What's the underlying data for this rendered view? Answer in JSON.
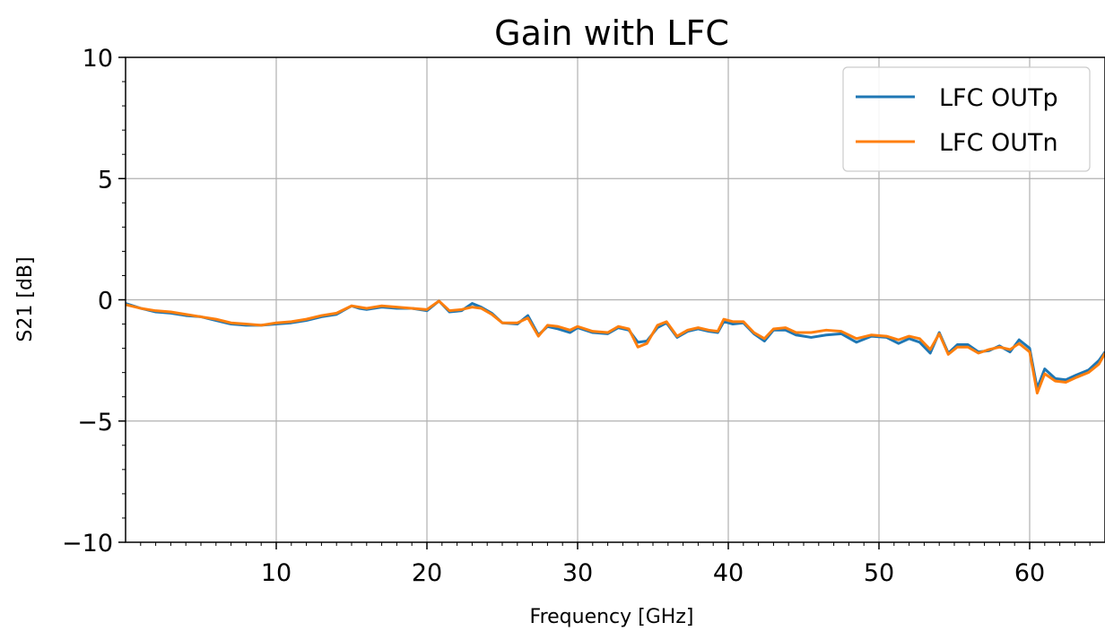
{
  "chart_data": {
    "type": "line",
    "title": "Gain with LFC",
    "xlabel": "Frequency [GHz]",
    "ylabel": "S21 [dB]",
    "xlim": [
      0,
      65
    ],
    "ylim": [
      -10,
      10
    ],
    "xticks": [
      10,
      20,
      30,
      40,
      50,
      60
    ],
    "yticks": [
      -10,
      -5,
      0,
      5,
      10
    ],
    "ytick_labels": [
      "−10",
      "−5",
      "0",
      "5",
      "10"
    ],
    "grid": true,
    "legend_position": "top-right",
    "series": [
      {
        "name": "LFC OUTp",
        "color": "#1f77b4",
        "x": [
          0,
          1,
          2,
          3,
          4,
          5,
          6,
          7,
          8,
          9,
          10,
          11,
          12,
          13,
          14,
          15,
          15.5,
          16,
          17,
          18,
          19,
          20,
          20.8,
          21.5,
          22.3,
          23,
          23.6,
          24.3,
          25,
          26,
          26.7,
          27.4,
          28,
          28.7,
          29.5,
          30,
          31,
          32,
          32.7,
          33.4,
          34,
          34.6,
          35.3,
          35.9,
          36.6,
          37.3,
          38,
          38.7,
          39.3,
          39.7,
          40.3,
          41,
          41.7,
          42.4,
          43,
          43.8,
          44.5,
          45.5,
          46.5,
          47.5,
          48.5,
          49.5,
          50.5,
          51.3,
          52,
          52.7,
          53.4,
          54,
          54.6,
          55.2,
          55.9,
          56.6,
          57.3,
          58,
          58.7,
          59.3,
          60,
          60.5,
          61,
          61.7,
          62.4,
          63.1,
          63.9,
          64.6,
          65
        ],
        "values": [
          -0.15,
          -0.35,
          -0.5,
          -0.55,
          -0.65,
          -0.7,
          -0.85,
          -1.0,
          -1.05,
          -1.05,
          -1.0,
          -0.95,
          -0.85,
          -0.7,
          -0.6,
          -0.25,
          -0.35,
          -0.4,
          -0.3,
          -0.35,
          -0.35,
          -0.45,
          -0.05,
          -0.5,
          -0.45,
          -0.15,
          -0.3,
          -0.55,
          -0.95,
          -1.0,
          -0.65,
          -1.45,
          -1.1,
          -1.2,
          -1.35,
          -1.15,
          -1.35,
          -1.4,
          -1.15,
          -1.25,
          -1.75,
          -1.7,
          -1.15,
          -0.95,
          -1.55,
          -1.3,
          -1.2,
          -1.3,
          -1.35,
          -0.9,
          -1.0,
          -0.95,
          -1.4,
          -1.7,
          -1.25,
          -1.25,
          -1.45,
          -1.55,
          -1.45,
          -1.4,
          -1.75,
          -1.5,
          -1.55,
          -1.8,
          -1.6,
          -1.75,
          -2.2,
          -1.35,
          -2.2,
          -1.85,
          -1.85,
          -2.15,
          -2.1,
          -1.9,
          -2.15,
          -1.65,
          -2.0,
          -3.65,
          -2.85,
          -3.25,
          -3.3,
          -3.1,
          -2.9,
          -2.5,
          -2.15
        ]
      },
      {
        "name": "LFC OUTn",
        "color": "#ff7f0e",
        "x": [
          0,
          1,
          2,
          3,
          4,
          5,
          6,
          7,
          8,
          9,
          10,
          11,
          12,
          13,
          14,
          15,
          15.5,
          16,
          17,
          18,
          19,
          20,
          20.8,
          21.5,
          22.3,
          23,
          23.6,
          24.3,
          25,
          26,
          26.7,
          27.4,
          28,
          28.7,
          29.5,
          30,
          31,
          32,
          32.7,
          33.4,
          34,
          34.6,
          35.3,
          35.9,
          36.6,
          37.3,
          38,
          38.7,
          39.3,
          39.7,
          40.3,
          41,
          41.7,
          42.4,
          43,
          43.8,
          44.5,
          45.5,
          46.5,
          47.5,
          48.5,
          49.5,
          50.5,
          51.3,
          52,
          52.7,
          53.4,
          54,
          54.6,
          55.2,
          55.9,
          56.6,
          57.3,
          58,
          58.7,
          59.3,
          60,
          60.5,
          61,
          61.7,
          62.4,
          63.1,
          63.9,
          64.6,
          65
        ],
        "values": [
          -0.2,
          -0.35,
          -0.45,
          -0.5,
          -0.6,
          -0.7,
          -0.8,
          -0.95,
          -1.0,
          -1.05,
          -0.95,
          -0.9,
          -0.8,
          -0.65,
          -0.55,
          -0.25,
          -0.3,
          -0.35,
          -0.25,
          -0.3,
          -0.35,
          -0.4,
          -0.05,
          -0.45,
          -0.4,
          -0.3,
          -0.35,
          -0.6,
          -0.95,
          -0.95,
          -0.75,
          -1.5,
          -1.05,
          -1.1,
          -1.25,
          -1.1,
          -1.3,
          -1.35,
          -1.1,
          -1.2,
          -1.95,
          -1.8,
          -1.05,
          -0.9,
          -1.5,
          -1.25,
          -1.15,
          -1.25,
          -1.3,
          -0.8,
          -0.9,
          -0.9,
          -1.35,
          -1.6,
          -1.2,
          -1.15,
          -1.35,
          -1.35,
          -1.25,
          -1.3,
          -1.6,
          -1.45,
          -1.5,
          -1.65,
          -1.5,
          -1.6,
          -2.05,
          -1.4,
          -2.25,
          -1.95,
          -1.95,
          -2.2,
          -2.05,
          -1.95,
          -2.05,
          -1.8,
          -2.15,
          -3.85,
          -3.05,
          -3.35,
          -3.4,
          -3.2,
          -3.0,
          -2.65,
          -2.2
        ]
      }
    ]
  }
}
